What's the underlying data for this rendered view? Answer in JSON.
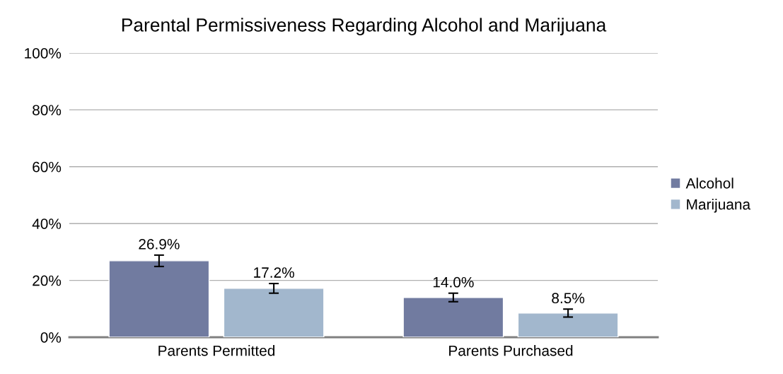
{
  "chart_data": {
    "type": "bar",
    "title": "Parental Permissiveness Regarding Alcohol and Marijuana",
    "categories": [
      "Parents Permitted",
      "Parents Purchased"
    ],
    "series": [
      {
        "name": "Alcohol",
        "color": "#717ba0",
        "values": [
          26.9,
          14.0
        ],
        "errors": [
          2.0,
          1.5
        ],
        "value_labels": [
          "26.9%",
          "14.0%"
        ]
      },
      {
        "name": "Marijuana",
        "color": "#a2b7cd",
        "values": [
          17.2,
          8.5
        ],
        "errors": [
          1.7,
          1.4
        ],
        "value_labels": [
          "17.2%",
          "8.5%"
        ]
      }
    ],
    "ylim": [
      0,
      100
    ],
    "yticks": [
      {
        "value": 0,
        "label": "0%"
      },
      {
        "value": 20,
        "label": "20%"
      },
      {
        "value": 40,
        "label": "40%"
      },
      {
        "value": 60,
        "label": "60%"
      },
      {
        "value": 80,
        "label": "80%"
      },
      {
        "value": 100,
        "label": "100%"
      }
    ],
    "grid": "y",
    "legend": "right"
  }
}
